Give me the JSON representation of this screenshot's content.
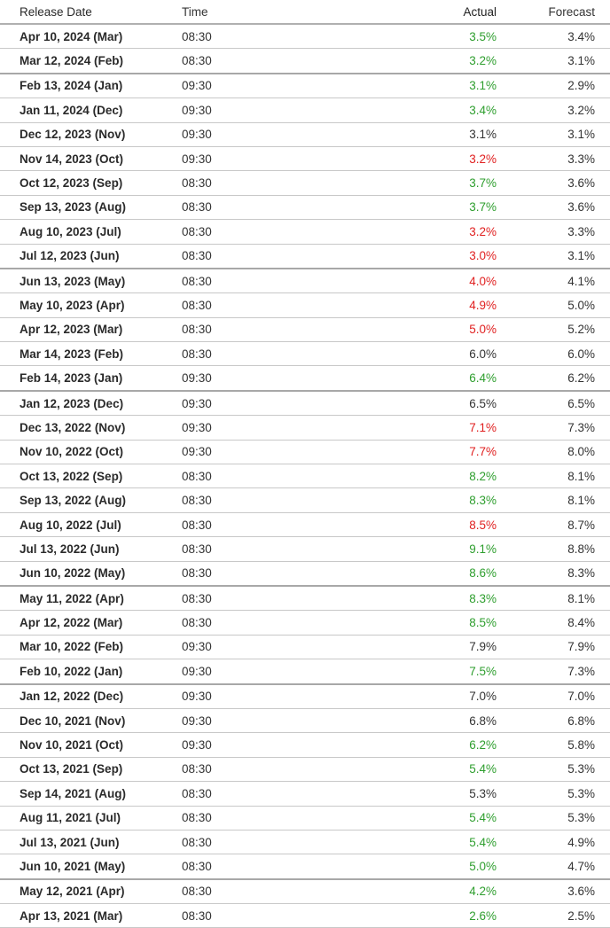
{
  "colors": {
    "positive": "#2e9e2e",
    "negative": "#e02020",
    "neutral": "#333333"
  },
  "headers": {
    "release_date": "Release Date",
    "time": "Time",
    "actual": "Actual",
    "forecast": "Forecast"
  },
  "rows": [
    {
      "date": "Apr 10, 2024 (Mar)",
      "time": "08:30",
      "actual": "3.5%",
      "forecast": "3.4%",
      "status": "pos",
      "sep": false
    },
    {
      "date": "Mar 12, 2024 (Feb)",
      "time": "08:30",
      "actual": "3.2%",
      "forecast": "3.1%",
      "status": "pos",
      "sep": true
    },
    {
      "date": "Feb 13, 2024 (Jan)",
      "time": "09:30",
      "actual": "3.1%",
      "forecast": "2.9%",
      "status": "pos",
      "sep": false
    },
    {
      "date": "Jan 11, 2024 (Dec)",
      "time": "09:30",
      "actual": "3.4%",
      "forecast": "3.2%",
      "status": "pos",
      "sep": false
    },
    {
      "date": "Dec 12, 2023 (Nov)",
      "time": "09:30",
      "actual": "3.1%",
      "forecast": "3.1%",
      "status": "neu",
      "sep": false
    },
    {
      "date": "Nov 14, 2023 (Oct)",
      "time": "09:30",
      "actual": "3.2%",
      "forecast": "3.3%",
      "status": "neg",
      "sep": false
    },
    {
      "date": "Oct 12, 2023 (Sep)",
      "time": "08:30",
      "actual": "3.7%",
      "forecast": "3.6%",
      "status": "pos",
      "sep": false
    },
    {
      "date": "Sep 13, 2023 (Aug)",
      "time": "08:30",
      "actual": "3.7%",
      "forecast": "3.6%",
      "status": "pos",
      "sep": false
    },
    {
      "date": "Aug 10, 2023 (Jul)",
      "time": "08:30",
      "actual": "3.2%",
      "forecast": "3.3%",
      "status": "neg",
      "sep": false
    },
    {
      "date": "Jul 12, 2023 (Jun)",
      "time": "08:30",
      "actual": "3.0%",
      "forecast": "3.1%",
      "status": "neg",
      "sep": true
    },
    {
      "date": "Jun 13, 2023 (May)",
      "time": "08:30",
      "actual": "4.0%",
      "forecast": "4.1%",
      "status": "neg",
      "sep": false
    },
    {
      "date": "May 10, 2023 (Apr)",
      "time": "08:30",
      "actual": "4.9%",
      "forecast": "5.0%",
      "status": "neg",
      "sep": false
    },
    {
      "date": "Apr 12, 2023 (Mar)",
      "time": "08:30",
      "actual": "5.0%",
      "forecast": "5.2%",
      "status": "neg",
      "sep": false
    },
    {
      "date": "Mar 14, 2023 (Feb)",
      "time": "08:30",
      "actual": "6.0%",
      "forecast": "6.0%",
      "status": "neu",
      "sep": false
    },
    {
      "date": "Feb 14, 2023 (Jan)",
      "time": "09:30",
      "actual": "6.4%",
      "forecast": "6.2%",
      "status": "pos",
      "sep": true
    },
    {
      "date": "Jan 12, 2023 (Dec)",
      "time": "09:30",
      "actual": "6.5%",
      "forecast": "6.5%",
      "status": "neu",
      "sep": false
    },
    {
      "date": "Dec 13, 2022 (Nov)",
      "time": "09:30",
      "actual": "7.1%",
      "forecast": "7.3%",
      "status": "neg",
      "sep": false
    },
    {
      "date": "Nov 10, 2022 (Oct)",
      "time": "09:30",
      "actual": "7.7%",
      "forecast": "8.0%",
      "status": "neg",
      "sep": false
    },
    {
      "date": "Oct 13, 2022 (Sep)",
      "time": "08:30",
      "actual": "8.2%",
      "forecast": "8.1%",
      "status": "pos",
      "sep": false
    },
    {
      "date": "Sep 13, 2022 (Aug)",
      "time": "08:30",
      "actual": "8.3%",
      "forecast": "8.1%",
      "status": "pos",
      "sep": false
    },
    {
      "date": "Aug 10, 2022 (Jul)",
      "time": "08:30",
      "actual": "8.5%",
      "forecast": "8.7%",
      "status": "neg",
      "sep": false
    },
    {
      "date": "Jul 13, 2022 (Jun)",
      "time": "08:30",
      "actual": "9.1%",
      "forecast": "8.8%",
      "status": "pos",
      "sep": false
    },
    {
      "date": "Jun 10, 2022 (May)",
      "time": "08:30",
      "actual": "8.6%",
      "forecast": "8.3%",
      "status": "pos",
      "sep": true
    },
    {
      "date": "May 11, 2022 (Apr)",
      "time": "08:30",
      "actual": "8.3%",
      "forecast": "8.1%",
      "status": "pos",
      "sep": false
    },
    {
      "date": "Apr 12, 2022 (Mar)",
      "time": "08:30",
      "actual": "8.5%",
      "forecast": "8.4%",
      "status": "pos",
      "sep": false
    },
    {
      "date": "Mar 10, 2022 (Feb)",
      "time": "09:30",
      "actual": "7.9%",
      "forecast": "7.9%",
      "status": "neu",
      "sep": false
    },
    {
      "date": "Feb 10, 2022 (Jan)",
      "time": "09:30",
      "actual": "7.5%",
      "forecast": "7.3%",
      "status": "pos",
      "sep": true
    },
    {
      "date": "Jan 12, 2022 (Dec)",
      "time": "09:30",
      "actual": "7.0%",
      "forecast": "7.0%",
      "status": "neu",
      "sep": false
    },
    {
      "date": "Dec 10, 2021 (Nov)",
      "time": "09:30",
      "actual": "6.8%",
      "forecast": "6.8%",
      "status": "neu",
      "sep": false
    },
    {
      "date": "Nov 10, 2021 (Oct)",
      "time": "09:30",
      "actual": "6.2%",
      "forecast": "5.8%",
      "status": "pos",
      "sep": false
    },
    {
      "date": "Oct 13, 2021 (Sep)",
      "time": "08:30",
      "actual": "5.4%",
      "forecast": "5.3%",
      "status": "pos",
      "sep": false
    },
    {
      "date": "Sep 14, 2021 (Aug)",
      "time": "08:30",
      "actual": "5.3%",
      "forecast": "5.3%",
      "status": "neu",
      "sep": false
    },
    {
      "date": "Aug 11, 2021 (Jul)",
      "time": "08:30",
      "actual": "5.4%",
      "forecast": "5.3%",
      "status": "pos",
      "sep": false
    },
    {
      "date": "Jul 13, 2021 (Jun)",
      "time": "08:30",
      "actual": "5.4%",
      "forecast": "4.9%",
      "status": "pos",
      "sep": false
    },
    {
      "date": "Jun 10, 2021 (May)",
      "time": "08:30",
      "actual": "5.0%",
      "forecast": "4.7%",
      "status": "pos",
      "sep": true
    },
    {
      "date": "May 12, 2021 (Apr)",
      "time": "08:30",
      "actual": "4.2%",
      "forecast": "3.6%",
      "status": "pos",
      "sep": false
    },
    {
      "date": "Apr 13, 2021 (Mar)",
      "time": "08:30",
      "actual": "2.6%",
      "forecast": "2.5%",
      "status": "pos",
      "sep": false
    }
  ]
}
